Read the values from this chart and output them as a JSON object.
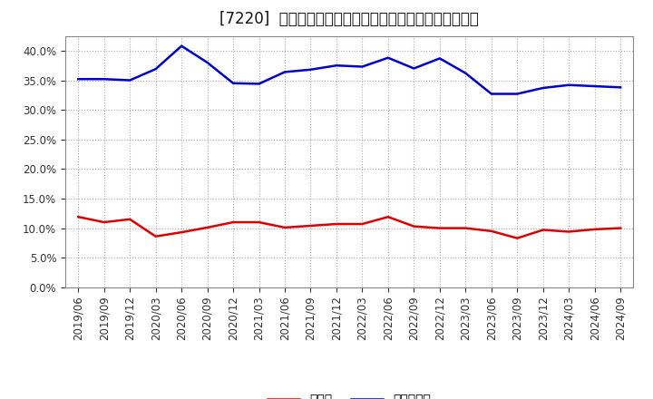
{
  "title": "[7220]  現顔金、有利子負債の総資産に対する比率の推移",
  "x_labels": [
    "2019/06",
    "2019/09",
    "2019/12",
    "2020/03",
    "2020/06",
    "2020/09",
    "2020/12",
    "2021/03",
    "2021/06",
    "2021/09",
    "2021/12",
    "2022/03",
    "2022/06",
    "2022/09",
    "2022/12",
    "2023/03",
    "2023/06",
    "2023/09",
    "2023/12",
    "2024/03",
    "2024/06",
    "2024/09"
  ],
  "cash": [
    0.119,
    0.11,
    0.115,
    0.086,
    0.093,
    0.101,
    0.11,
    0.11,
    0.101,
    0.104,
    0.107,
    0.107,
    0.119,
    0.103,
    0.1,
    0.1,
    0.095,
    0.083,
    0.097,
    0.094,
    0.098,
    0.1
  ],
  "debt": [
    0.352,
    0.352,
    0.35,
    0.369,
    0.408,
    0.38,
    0.345,
    0.344,
    0.364,
    0.368,
    0.375,
    0.373,
    0.388,
    0.37,
    0.387,
    0.362,
    0.327,
    0.327,
    0.337,
    0.342,
    0.34,
    0.338
  ],
  "cash_color": "#dd0000",
  "debt_color": "#0000cc",
  "background_color": "#ffffff",
  "plot_bg_color": "#ffffff",
  "grid_color": "#aaaaaa",
  "legend_cash": "現顔金",
  "legend_debt": "有利子負債",
  "ylim": [
    0.0,
    0.425
  ],
  "yticks": [
    0.0,
    0.05,
    0.1,
    0.15,
    0.2,
    0.25,
    0.3,
    0.35,
    0.4
  ],
  "title_fontsize": 12,
  "legend_fontsize": 10,
  "tick_fontsize": 8.5,
  "line_width": 1.8
}
